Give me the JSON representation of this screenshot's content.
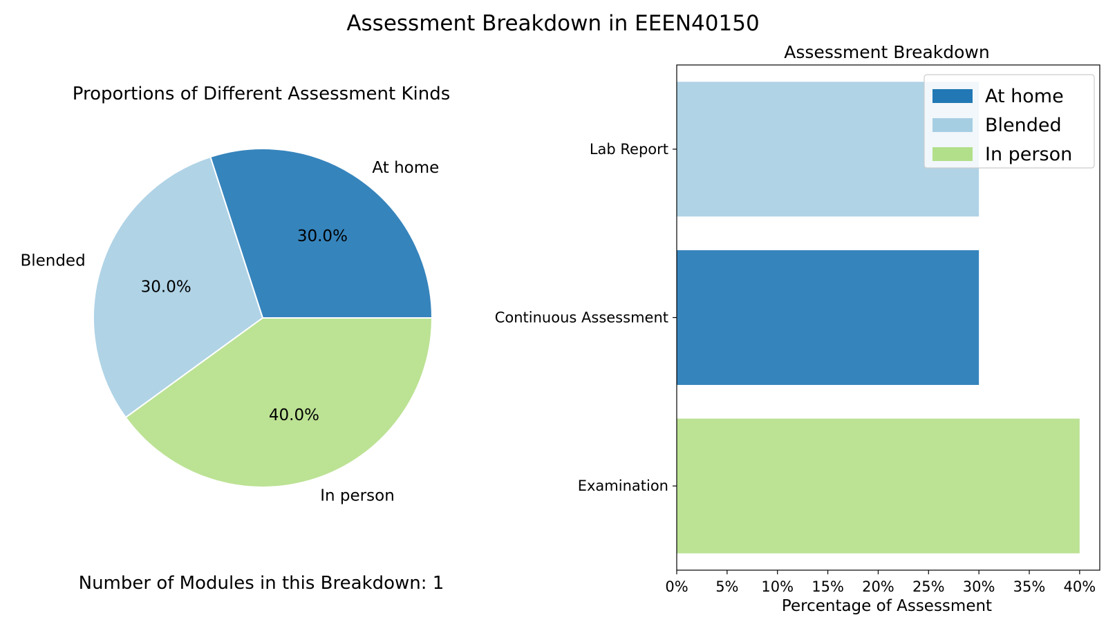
{
  "figure": {
    "title": "Assessment Breakdown in EEEN40150",
    "footnote": "Number of Modules in this Breakdown: 1"
  },
  "colors": {
    "at_home": "#3684bc",
    "blended": "#b0d3e6",
    "in_person": "#bce294",
    "legend_at_home": "#2178b4",
    "legend_blended": "#a6cee3",
    "legend_in_person": "#b2df8a"
  },
  "chart_data": [
    {
      "type": "pie",
      "title": "Proportions of Different Assessment Kinds",
      "labels": [
        "At home",
        "Blended",
        "In person"
      ],
      "values": [
        30.0,
        30.0,
        40.0
      ],
      "value_labels": [
        "30.0%",
        "30.0%",
        "40.0%"
      ],
      "start_angle": 0,
      "direction": "counterclockwise"
    },
    {
      "type": "bar",
      "orientation": "horizontal",
      "title": "Assessment Breakdown",
      "xlabel": "Percentage of Assessment",
      "ylabel": "",
      "categories": [
        "Lab Report",
        "Continuous Assessment",
        "Examination"
      ],
      "values": [
        30,
        30,
        40
      ],
      "bar_kinds": [
        "blended",
        "at_home",
        "in_person"
      ],
      "xlim": [
        0,
        42
      ],
      "xticks": [
        0,
        5,
        10,
        15,
        20,
        25,
        30,
        35,
        40
      ],
      "xtick_labels": [
        "0%",
        "5%",
        "10%",
        "15%",
        "20%",
        "25%",
        "30%",
        "35%",
        "40%"
      ],
      "legend": {
        "placement": "top-right",
        "entries": [
          {
            "label": "At home",
            "kind": "legend_at_home"
          },
          {
            "label": "Blended",
            "kind": "legend_blended"
          },
          {
            "label": "In person",
            "kind": "legend_in_person"
          }
        ]
      },
      "grid": false
    }
  ]
}
